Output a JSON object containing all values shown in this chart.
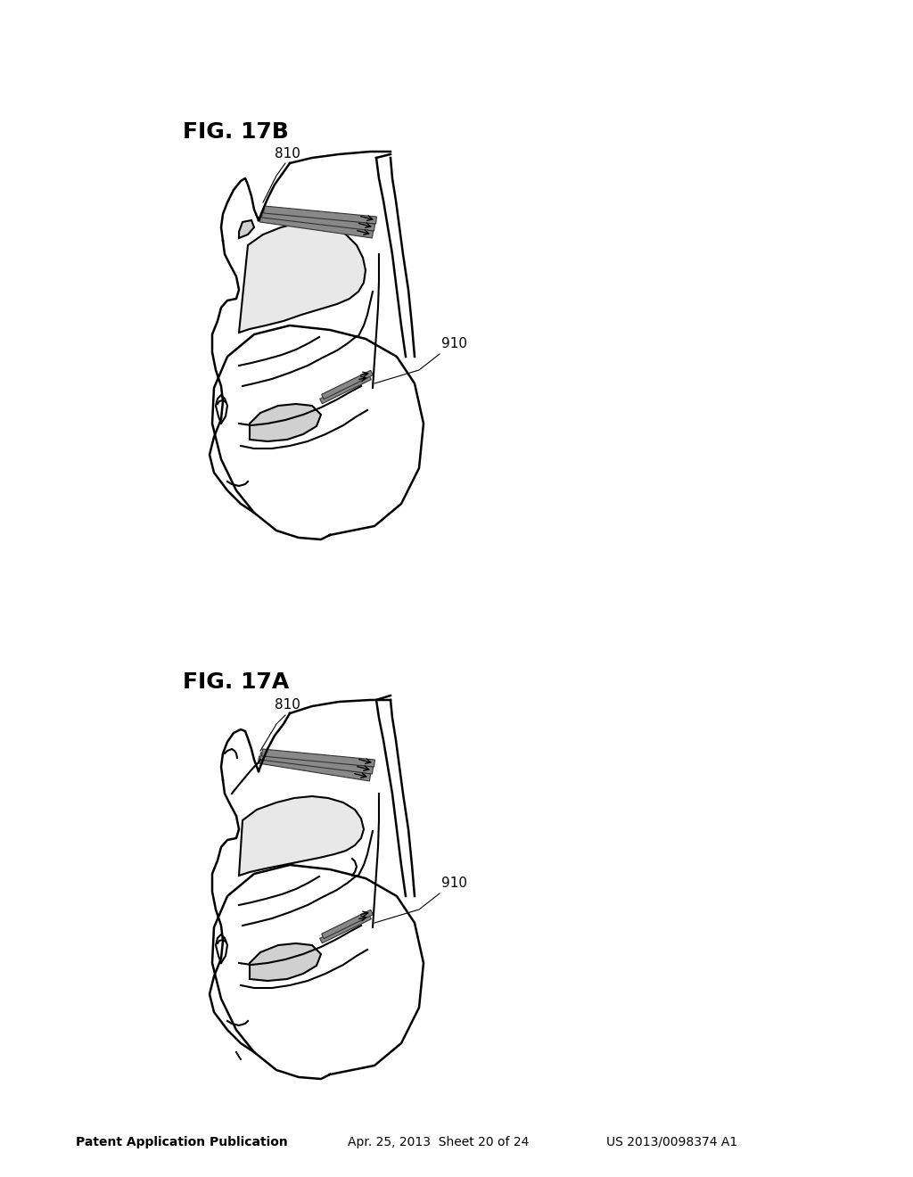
{
  "title": "",
  "header_left": "Patent Application Publication",
  "header_center": "Apr. 25, 2013  Sheet 20 of 24",
  "header_right": "US 2013/0098374 A1",
  "fig_label_A": "FIG. 17A",
  "fig_label_B": "FIG. 17B",
  "label_810": "810",
  "label_910": "910",
  "bg_color": "#ffffff",
  "line_color": "#000000",
  "gray_fill": "#c8c8c8",
  "dark_fill": "#404040"
}
